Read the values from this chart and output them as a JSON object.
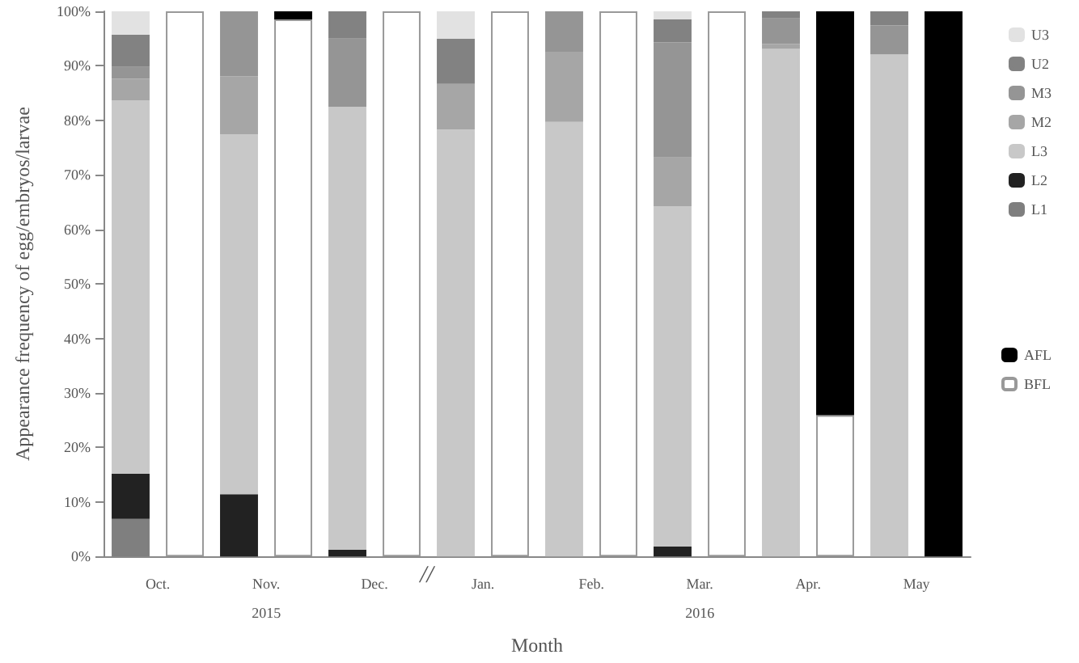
{
  "chart_data": {
    "type": "bar",
    "stacked": true,
    "xlabel": "Month",
    "ylabel": "Appearance frequency of egg/embryos/larvae",
    "categories": [
      "Oct.",
      null,
      "Nov.\n2015",
      null,
      "Dec.",
      null,
      "Jan.",
      null,
      "Feb.",
      null,
      "Mar.\n2016",
      null,
      "Apr.",
      null,
      "May",
      null
    ],
    "series": [
      {
        "name": "L1",
        "color": "#7f7f7f",
        "values": [
          6.9,
          null,
          null,
          null,
          null,
          null,
          null,
          null,
          null,
          null,
          null,
          null,
          null,
          null,
          null,
          null
        ]
      },
      {
        "name": "L2",
        "color": "#222222",
        "values": [
          8.3,
          null,
          11.4,
          null,
          1.2,
          null,
          null,
          null,
          null,
          null,
          1.8,
          null,
          null,
          null,
          null,
          null
        ]
      },
      {
        "name": "L3",
        "color": "#c8c8c8",
        "values": [
          68.5,
          null,
          66.0,
          null,
          81.3,
          null,
          78.3,
          null,
          79.7,
          null,
          62.4,
          null,
          93.1,
          null,
          92.1,
          null
        ]
      },
      {
        "name": "M2",
        "color": "#a6a6a6",
        "values": [
          3.9,
          null,
          10.7,
          null,
          null,
          null,
          8.4,
          null,
          12.9,
          null,
          9.0,
          null,
          0.9,
          null,
          null,
          null
        ]
      },
      {
        "name": "M3",
        "color": "#959595",
        "values": [
          2.2,
          null,
          11.9,
          null,
          12.5,
          null,
          null,
          null,
          7.4,
          null,
          21.1,
          null,
          4.7,
          null,
          5.3,
          null
        ]
      },
      {
        "name": "U2",
        "color": "#828282",
        "values": [
          5.9,
          null,
          null,
          null,
          5.0,
          null,
          8.3,
          null,
          null,
          null,
          4.2,
          null,
          1.3,
          null,
          2.6,
          null
        ]
      },
      {
        "name": "U3",
        "color": "#e2e2e2",
        "values": [
          4.3,
          null,
          null,
          null,
          null,
          null,
          5.0,
          null,
          null,
          null,
          1.5,
          null,
          null,
          null,
          null,
          null
        ]
      },
      {
        "name": "BFL",
        "color": "#ffffff",
        "values": [
          null,
          100,
          null,
          98.5,
          null,
          100,
          null,
          100,
          null,
          100,
          null,
          100,
          null,
          25.9,
          null,
          null
        ]
      },
      {
        "name": "AFL",
        "color": "#000000",
        "values": [
          null,
          null,
          null,
          1.5,
          null,
          null,
          null,
          null,
          null,
          null,
          null,
          null,
          null,
          74.1,
          null,
          100
        ]
      }
    ],
    "ylim": [
      0,
      100
    ],
    "yticks": [
      {
        "value": 0,
        "label": "0%"
      },
      {
        "value": 10,
        "label": "10%"
      },
      {
        "value": 20,
        "label": "20%"
      },
      {
        "value": 30,
        "label": "30%"
      },
      {
        "value": 40,
        "label": "40%"
      },
      {
        "value": 50,
        "label": "50%"
      },
      {
        "value": 60,
        "label": "60%"
      },
      {
        "value": 70,
        "label": "70%"
      },
      {
        "value": 80,
        "label": "80%"
      },
      {
        "value": 90,
        "label": "90%"
      },
      {
        "value": 100,
        "label": "100%"
      }
    ],
    "annotations": [
      "//"
    ],
    "legend": "right"
  }
}
